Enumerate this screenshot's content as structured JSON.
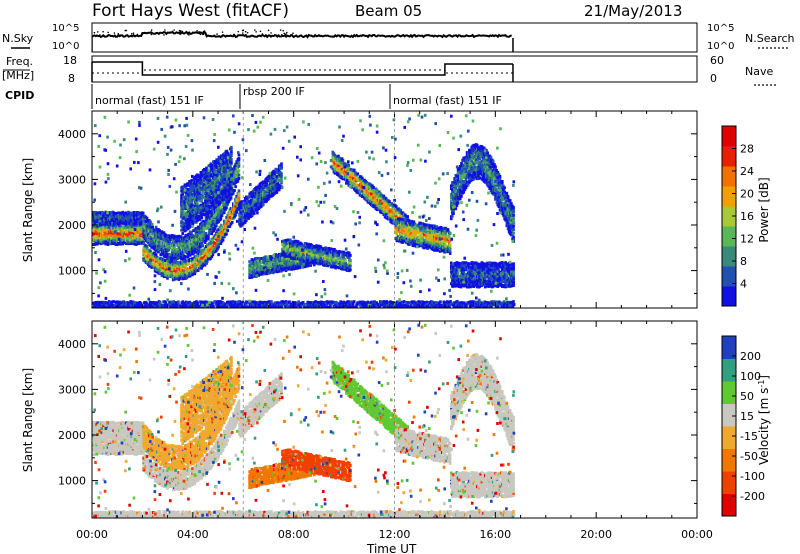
{
  "header": {
    "title": "Fort Hays West (fitACF)",
    "beam": "Beam 05",
    "date": "21/May/2013"
  },
  "labels": {
    "nsky": "N.Sky",
    "nsearch": "N.Search",
    "freq_line1": "Freq.",
    "freq_line2": "[MHz]",
    "nave": "Nave",
    "cpid": "CPID",
    "xlabel": "Time UT",
    "ylabel": "Slant Range [km]",
    "power_cb": "Power [dB]",
    "velocity_cb": "Velocity [m s",
    "velocity_cb_sup": "-1",
    "velocity_cb_end": "]"
  },
  "noise_panel": {
    "left_ticks": [
      "10^5",
      "10^0"
    ],
    "right_ticks": [
      "10^5",
      "10^0"
    ]
  },
  "freq_panel": {
    "left_ticks": [
      "18",
      "8"
    ],
    "right_ticks": [
      "60",
      "0"
    ]
  },
  "cpid_segments": [
    {
      "label": "normal (fast) 151 IF",
      "start": 0.0,
      "end": 6.0
    },
    {
      "label": "rbsp 200 IF",
      "start": 6.0,
      "end": 12.0
    },
    {
      "label": "normal (fast) 151 IF",
      "start": 12.0,
      "end": 16.7
    }
  ],
  "chart_data": {
    "type": "heatmap",
    "x_ticks": [
      "00:00",
      "04:00",
      "08:00",
      "12:00",
      "16:00",
      "20:00",
      "00:00"
    ],
    "xlim_hours": [
      0,
      24
    ],
    "y_ticks": [
      1000,
      2000,
      3000,
      4000
    ],
    "ylim_km": [
      180,
      4500
    ],
    "power_colorbar": {
      "label": "Power [dB]",
      "ticks": [
        4,
        8,
        12,
        16,
        20,
        24,
        28
      ],
      "range": [
        0,
        30
      ]
    },
    "velocity_colorbar": {
      "label": "Velocity [m s-1]",
      "ticks": [
        -200,
        -100,
        -50,
        -15,
        15,
        50,
        100,
        200
      ],
      "range": [
        -250,
        250
      ]
    },
    "data_end_hour": 16.7
  },
  "colors": {
    "power_scale": [
      "#1010e0",
      "#2050b0",
      "#3a8a7a",
      "#58b858",
      "#a8c838",
      "#f0a000",
      "#f07000",
      "#e82000",
      "#e00000"
    ],
    "velocity_scale": [
      "#e00000",
      "#f04000",
      "#f07800",
      "#f0a830",
      "#c8c8c0",
      "#60c830",
      "#30a080",
      "#2040c0"
    ],
    "ground_scatter": "#c8c8c0"
  }
}
